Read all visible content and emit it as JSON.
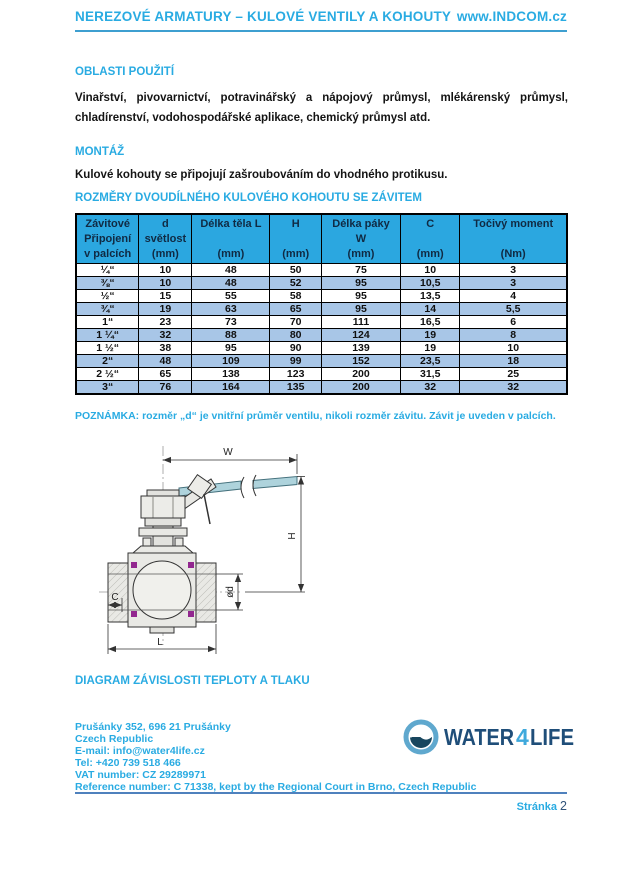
{
  "colors": {
    "accent_blue": "#29ABE2",
    "header_rule": "#3E9FD0",
    "table_header_bg": "#2BA7E0",
    "table_header_text": "#102A43",
    "row_alt_bg": "#A8C6E7",
    "footer_rule": "#4F81BD",
    "logo_navy": "#1F4E79",
    "logo_light_blue": "#3FA9DC",
    "seal_purple": "#92278F",
    "handle_teal": "#AED3DC"
  },
  "header": {
    "title": "NEREZOVÉ ARMATURY – KULOVÉ VENTILY A KOHOUTY",
    "site": "www.INDCOM.cz"
  },
  "sections": {
    "usage": {
      "heading": "OBLASTI POUŽITÍ",
      "body": "Vinařství, pivovarnictví, potravinářský a nápojový průmysl, mlékárenský průmysl, chladírenství, vodohospodářské aplikace, chemický průmysl atd."
    },
    "montaz": {
      "heading": "MONTÁŽ",
      "body": "Kulové kohouty se připojují zašroubováním do vhodného protikusu."
    },
    "rozmery": {
      "heading": "ROZMĚRY DVOUDÍLNÉHO KULOVÉHO KOHOUTU SE ZÁVITEM"
    },
    "diagram": {
      "heading": "DIAGRAM ZÁVISLOSTI TEPLOTY A TLAKU"
    }
  },
  "table": {
    "columns": [
      {
        "l1": "Závitové",
        "l2": "Připojení",
        "l3": "v palcích"
      },
      {
        "l1": "d",
        "l2": "světlost",
        "l3": "(mm)"
      },
      {
        "l1": "Délka těla L",
        "l2": "",
        "l3": "(mm)"
      },
      {
        "l1": "H",
        "l2": "",
        "l3": "(mm)"
      },
      {
        "l1": "Délka páky",
        "l2": "W",
        "l3": "(mm)"
      },
      {
        "l1": "C",
        "l2": "",
        "l3": "(mm)"
      },
      {
        "l1": "Točivý moment",
        "l2": "",
        "l3": "(Nm)"
      }
    ],
    "rows": [
      [
        "¼“",
        "10",
        "48",
        "50",
        "75",
        "10",
        "3"
      ],
      [
        "⅜“",
        "10",
        "48",
        "52",
        "95",
        "10,5",
        "3"
      ],
      [
        "½“",
        "15",
        "55",
        "58",
        "95",
        "13,5",
        "4"
      ],
      [
        "¾“",
        "19",
        "63",
        "65",
        "95",
        "14",
        "5,5"
      ],
      [
        "1“",
        "23",
        "73",
        "70",
        "111",
        "16,5",
        "6"
      ],
      [
        "1 ¼“",
        "32",
        "88",
        "80",
        "124",
        "19",
        "8"
      ],
      [
        "1 ½“",
        "38",
        "95",
        "90",
        "139",
        "19",
        "10"
      ],
      [
        "2“",
        "48",
        "109",
        "99",
        "152",
        "23,5",
        "18"
      ],
      [
        "2 ½“",
        "65",
        "138",
        "123",
        "200",
        "31,5",
        "25"
      ],
      [
        "3“",
        "76",
        "164",
        "135",
        "200",
        "32",
        "32"
      ]
    ]
  },
  "note": "POZNÁMKA: rozměr „d“ je vnitřní průměr ventilu, nikoli rozměr závitu. Závit je uveden v palcích.",
  "diagram": {
    "labels": {
      "w": "W",
      "h": "H",
      "od": "ød",
      "c": "C",
      "l": "L"
    }
  },
  "logo": {
    "word1": "WATER",
    "digit": "4",
    "word2": "LIFE"
  },
  "footer": {
    "address_lines": [
      "Prušánky 352, 696 21 Prušánky",
      "Czech Republic",
      "E-mail: info@water4life.cz",
      "Tel: +420 739 518 466",
      "VAT number: CZ 29289971",
      "Reference number: C 71338, kept by the Regional Court in Brno, Czech Republic"
    ],
    "page_label": "Stránka",
    "page_number": "2"
  }
}
